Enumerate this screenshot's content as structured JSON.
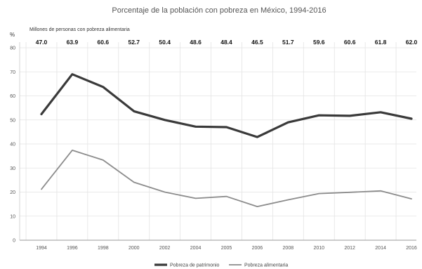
{
  "chart_data": {
    "type": "line",
    "title": "Porcentaje de la población con pobreza en México, 1994-2016",
    "subtitle": "Millones de personas con pobreza alimentaria",
    "ylabel": "%",
    "xlabel": "",
    "categories": [
      "1994",
      "1996",
      "1998",
      "2000",
      "2002",
      "2004",
      "2005",
      "2006",
      "2008",
      "2010",
      "2012",
      "2014",
      "2016"
    ],
    "millions": [
      "47.0",
      "63.9",
      "60.6",
      "52.7",
      "50.4",
      "48.6",
      "48.4",
      "46.5",
      "51.7",
      "59.6",
      "60.6",
      "61.8",
      "62.0"
    ],
    "ylim": [
      0,
      80
    ],
    "yticks": [
      0,
      10,
      20,
      30,
      40,
      50,
      60,
      70,
      80
    ],
    "grid": true,
    "legend_position": "bottom",
    "series": [
      {
        "name": "Pobreza de patrimonio",
        "color": "#3a3a3a",
        "values": [
          52.4,
          69.0,
          63.7,
          53.6,
          50.0,
          47.2,
          47.0,
          42.9,
          49.0,
          51.9,
          51.7,
          53.2,
          50.5
        ]
      },
      {
        "name": "Pobreza alimentaria",
        "color": "#8c8c8c",
        "values": [
          21.2,
          37.4,
          33.3,
          24.1,
          20.0,
          17.4,
          18.2,
          14.0,
          16.8,
          19.4,
          19.9,
          20.5,
          17.2
        ]
      }
    ]
  }
}
